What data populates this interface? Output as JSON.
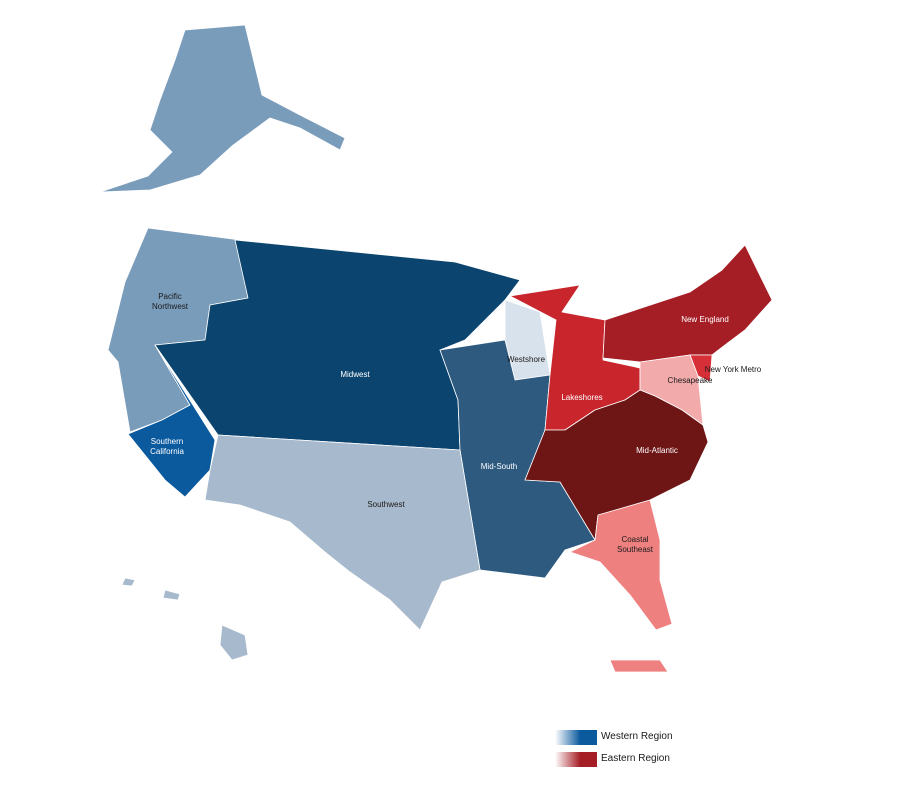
{
  "regions": [
    {
      "label": "Pacific Northwest",
      "color": "#7a9cbb"
    },
    {
      "label": "Southern California",
      "color": "#0b5a9e"
    },
    {
      "label": "Midwest",
      "color": "#0b456f"
    },
    {
      "label": "Westshore",
      "color": "#d8e2ec"
    },
    {
      "label": "Mid-South",
      "color": "#2f5a80"
    },
    {
      "label": "Southwest",
      "color": "#a7b9cc"
    },
    {
      "label": "Lakeshores",
      "color": "#c9252d"
    },
    {
      "label": "New England",
      "color": "#a61e25"
    },
    {
      "label": "New York Metro",
      "color": "#d62f38"
    },
    {
      "label": "Chesapeake",
      "color": "#f2aaaa"
    },
    {
      "label": "Mid-Atlantic",
      "color": "#6e1515"
    },
    {
      "label": "Coastal Southeast",
      "color": "#ef8080"
    }
  ],
  "legend": [
    {
      "label": "Western Region",
      "color": "#0b5a9e"
    },
    {
      "label": "Eastern Region",
      "color": "#a61e25"
    }
  ]
}
